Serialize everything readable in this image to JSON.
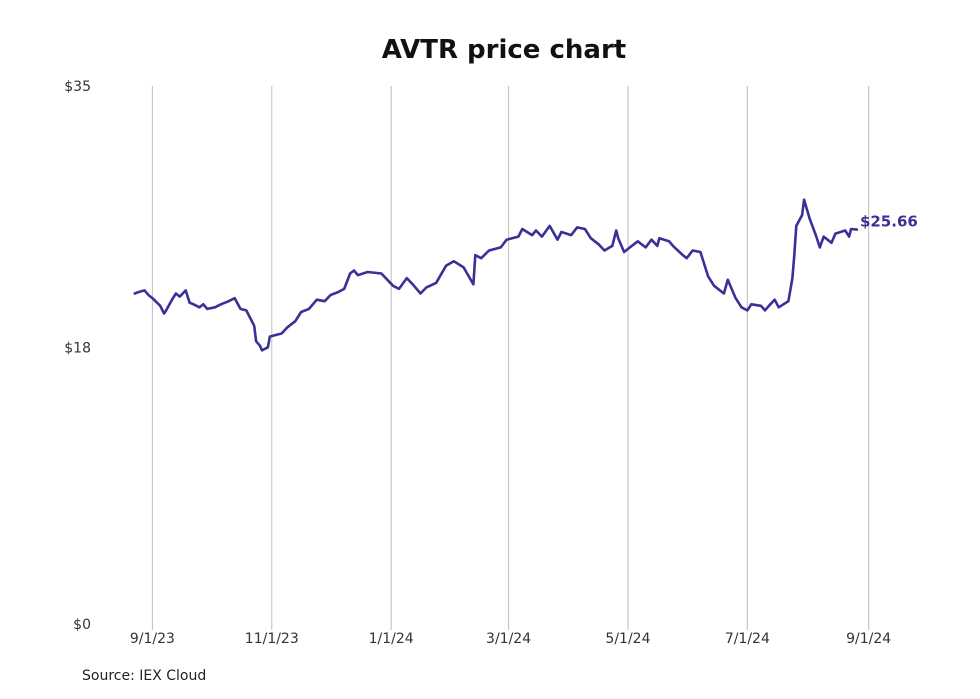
{
  "chart_data": {
    "type": "line",
    "title": "AVTR price chart",
    "source": "Source: IEX Cloud",
    "colors": {
      "line": "#3a3197",
      "grid": "#bdbdbd"
    },
    "ylim": [
      0,
      35
    ],
    "y_ticks": [
      {
        "value": 0,
        "label": "$0"
      },
      {
        "value": 18,
        "label": "$18"
      },
      {
        "value": 35,
        "label": "$35"
      }
    ],
    "x_range": [
      "2023-08-18",
      "2024-09-17"
    ],
    "x_ticks": [
      {
        "date": "2023-09-01",
        "label": "9/1/23"
      },
      {
        "date": "2023-11-01",
        "label": "11/1/23"
      },
      {
        "date": "2024-01-01",
        "label": "1/1/24"
      },
      {
        "date": "2024-03-01",
        "label": "3/1/24"
      },
      {
        "date": "2024-05-01",
        "label": "5/1/24"
      },
      {
        "date": "2024-07-01",
        "label": "7/1/24"
      },
      {
        "date": "2024-09-01",
        "label": "9/1/24"
      }
    ],
    "grid": "vertical",
    "last_value_label": "$25.66",
    "series": [
      {
        "points": [
          [
            "2023-08-23",
            21.5
          ],
          [
            "2023-08-25",
            21.6
          ],
          [
            "2023-08-28",
            21.7
          ],
          [
            "2023-08-30",
            21.4
          ],
          [
            "2023-09-01",
            21.2
          ],
          [
            "2023-09-05",
            20.7
          ],
          [
            "2023-09-07",
            20.2
          ],
          [
            "2023-09-08",
            20.4
          ],
          [
            "2023-09-11",
            21.1
          ],
          [
            "2023-09-13",
            21.5
          ],
          [
            "2023-09-15",
            21.3
          ],
          [
            "2023-09-18",
            21.7
          ],
          [
            "2023-09-20",
            20.9
          ],
          [
            "2023-09-22",
            20.8
          ],
          [
            "2023-09-25",
            20.6
          ],
          [
            "2023-09-27",
            20.8
          ],
          [
            "2023-09-29",
            20.5
          ],
          [
            "2023-10-03",
            20.6
          ],
          [
            "2023-10-06",
            20.8
          ],
          [
            "2023-10-10",
            21.0
          ],
          [
            "2023-10-13",
            21.2
          ],
          [
            "2023-10-16",
            20.5
          ],
          [
            "2023-10-19",
            20.4
          ],
          [
            "2023-10-23",
            19.4
          ],
          [
            "2023-10-24",
            18.4
          ],
          [
            "2023-10-26",
            18.1
          ],
          [
            "2023-10-27",
            17.8
          ],
          [
            "2023-10-30",
            18.0
          ],
          [
            "2023-10-31",
            18.7
          ],
          [
            "2023-11-03",
            18.8
          ],
          [
            "2023-11-06",
            18.9
          ],
          [
            "2023-11-09",
            19.3
          ],
          [
            "2023-11-13",
            19.7
          ],
          [
            "2023-11-16",
            20.3
          ],
          [
            "2023-11-20",
            20.5
          ],
          [
            "2023-11-24",
            21.1
          ],
          [
            "2023-11-28",
            21.0
          ],
          [
            "2023-12-01",
            21.4
          ],
          [
            "2023-12-05",
            21.6
          ],
          [
            "2023-12-08",
            21.8
          ],
          [
            "2023-12-11",
            22.8
          ],
          [
            "2023-12-13",
            23.0
          ],
          [
            "2023-12-15",
            22.7
          ],
          [
            "2023-12-20",
            22.9
          ],
          [
            "2023-12-27",
            22.8
          ],
          [
            "2024-01-02",
            22.0
          ],
          [
            "2024-01-05",
            21.8
          ],
          [
            "2024-01-09",
            22.5
          ],
          [
            "2024-01-12",
            22.1
          ],
          [
            "2024-01-16",
            21.5
          ],
          [
            "2024-01-19",
            21.9
          ],
          [
            "2024-01-24",
            22.2
          ],
          [
            "2024-01-29",
            23.3
          ],
          [
            "2024-02-02",
            23.6
          ],
          [
            "2024-02-07",
            23.2
          ],
          [
            "2024-02-12",
            22.1
          ],
          [
            "2024-02-13",
            24.0
          ],
          [
            "2024-02-16",
            23.8
          ],
          [
            "2024-02-20",
            24.3
          ],
          [
            "2024-02-26",
            24.5
          ],
          [
            "2024-02-29",
            25.0
          ],
          [
            "2024-03-06",
            25.2
          ],
          [
            "2024-03-08",
            25.7
          ],
          [
            "2024-03-13",
            25.3
          ],
          [
            "2024-03-15",
            25.6
          ],
          [
            "2024-03-18",
            25.2
          ],
          [
            "2024-03-22",
            25.9
          ],
          [
            "2024-03-26",
            25.0
          ],
          [
            "2024-03-28",
            25.5
          ],
          [
            "2024-04-02",
            25.3
          ],
          [
            "2024-04-05",
            25.8
          ],
          [
            "2024-04-09",
            25.7
          ],
          [
            "2024-04-12",
            25.1
          ],
          [
            "2024-04-16",
            24.7
          ],
          [
            "2024-04-19",
            24.3
          ],
          [
            "2024-04-23",
            24.6
          ],
          [
            "2024-04-25",
            25.6
          ],
          [
            "2024-04-26",
            25.1
          ],
          [
            "2024-04-29",
            24.2
          ],
          [
            "2024-05-02",
            24.5
          ],
          [
            "2024-05-06",
            24.9
          ],
          [
            "2024-05-10",
            24.5
          ],
          [
            "2024-05-13",
            25.0
          ],
          [
            "2024-05-16",
            24.6
          ],
          [
            "2024-05-17",
            25.1
          ],
          [
            "2024-05-22",
            24.9
          ],
          [
            "2024-05-24",
            24.6
          ],
          [
            "2024-05-29",
            24.0
          ],
          [
            "2024-05-31",
            23.8
          ],
          [
            "2024-06-03",
            24.3
          ],
          [
            "2024-06-07",
            24.2
          ],
          [
            "2024-06-11",
            22.6
          ],
          [
            "2024-06-14",
            22.0
          ],
          [
            "2024-06-19",
            21.5
          ],
          [
            "2024-06-21",
            22.4
          ],
          [
            "2024-06-25",
            21.2
          ],
          [
            "2024-06-28",
            20.6
          ],
          [
            "2024-07-01",
            20.4
          ],
          [
            "2024-07-03",
            20.8
          ],
          [
            "2024-07-08",
            20.7
          ],
          [
            "2024-07-10",
            20.4
          ],
          [
            "2024-07-12",
            20.7
          ],
          [
            "2024-07-15",
            21.1
          ],
          [
            "2024-07-17",
            20.6
          ],
          [
            "2024-07-22",
            21.0
          ],
          [
            "2024-07-24",
            22.5
          ],
          [
            "2024-07-25",
            24.0
          ],
          [
            "2024-07-26",
            25.9
          ],
          [
            "2024-07-29",
            26.6
          ],
          [
            "2024-07-30",
            27.6
          ],
          [
            "2024-08-02",
            26.3
          ],
          [
            "2024-08-05",
            25.3
          ],
          [
            "2024-08-07",
            24.5
          ],
          [
            "2024-08-09",
            25.2
          ],
          [
            "2024-08-13",
            24.8
          ],
          [
            "2024-08-15",
            25.4
          ],
          [
            "2024-08-20",
            25.6
          ],
          [
            "2024-08-22",
            25.2
          ],
          [
            "2024-08-23",
            25.7
          ],
          [
            "2024-08-26",
            25.66
          ]
        ]
      }
    ]
  }
}
